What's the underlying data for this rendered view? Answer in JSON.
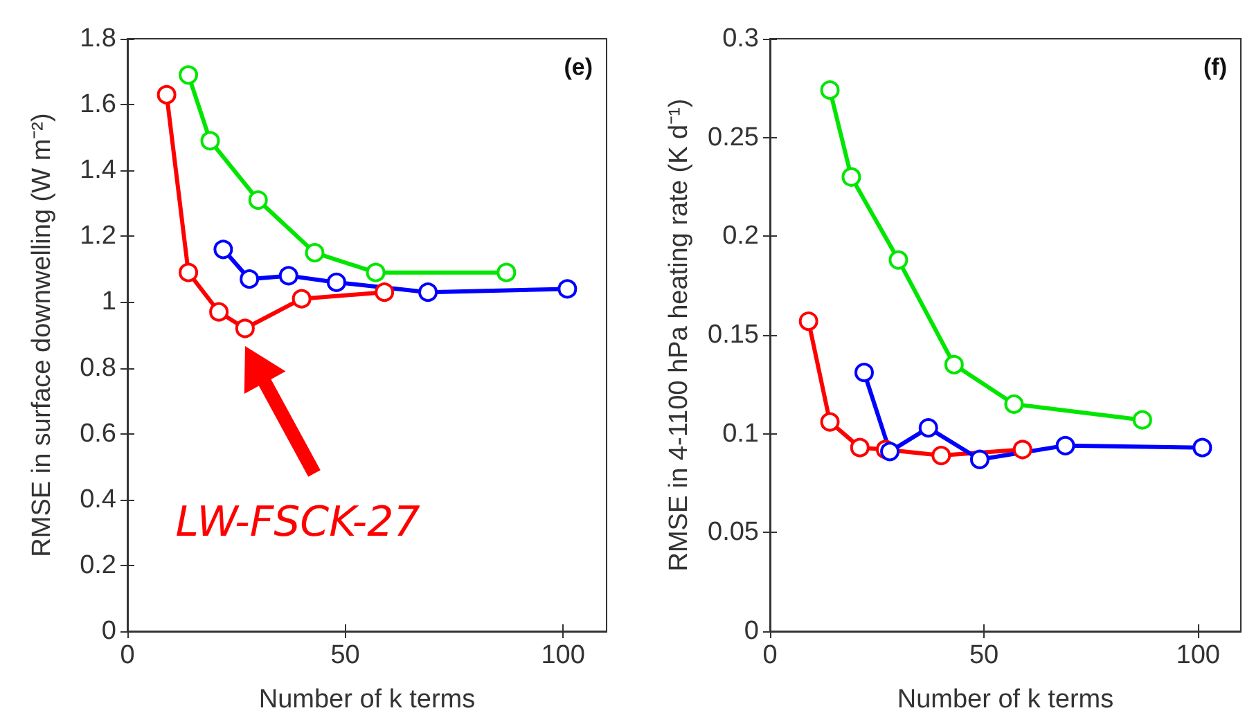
{
  "chart_data": [
    {
      "type": "line",
      "xlabel": "Number of k terms",
      "ylabel": "RMSE in surface downwelling (W m⁻²)",
      "annotations": [
        "(e)",
        "LW-FSCK-27"
      ],
      "xlim": [
        0,
        110
      ],
      "xticks": [
        0,
        50,
        100
      ],
      "ylim": [
        0,
        1.8
      ],
      "yticks": [
        0,
        0.2,
        0.4,
        0.6,
        0.8,
        1,
        1.2,
        1.4,
        1.6,
        1.8
      ],
      "grid": false,
      "marker": "circle",
      "line_style": "solid",
      "series": [
        {
          "color": "#ff0000",
          "x": [
            9,
            14,
            21,
            27,
            40,
            59
          ],
          "values": [
            1.63,
            1.09,
            0.97,
            0.92,
            1.01,
            1.03
          ]
        },
        {
          "color": "#00e600",
          "x": [
            14,
            19,
            30,
            43,
            57,
            87
          ],
          "values": [
            1.69,
            1.49,
            1.31,
            1.15,
            1.09,
            1.09
          ]
        },
        {
          "color": "#0000ff",
          "x": [
            22,
            28,
            37,
            48,
            69,
            101
          ],
          "values": [
            1.16,
            1.07,
            1.08,
            1.06,
            1.03,
            1.04
          ]
        }
      ]
    },
    {
      "type": "line",
      "xlabel": "Number of k terms",
      "ylabel": "RMSE in 4-1100 hPa heating rate (K d⁻¹)",
      "annotations": [
        "(f)"
      ],
      "xlim": [
        0,
        110
      ],
      "xticks": [
        0,
        50,
        100
      ],
      "ylim": [
        0,
        0.3
      ],
      "yticks": [
        0,
        0.05,
        0.1,
        0.15,
        0.2,
        0.25,
        0.3
      ],
      "grid": false,
      "marker": "circle",
      "line_style": "solid",
      "series": [
        {
          "color": "#ff0000",
          "x": [
            9,
            14,
            21,
            27,
            40,
            59
          ],
          "values": [
            0.157,
            0.106,
            0.093,
            0.092,
            0.089,
            0.092
          ]
        },
        {
          "color": "#00e600",
          "x": [
            14,
            19,
            30,
            43,
            57,
            87
          ],
          "values": [
            0.274,
            0.23,
            0.188,
            0.135,
            0.115,
            0.107
          ]
        },
        {
          "color": "#0000ff",
          "x": [
            22,
            28,
            37,
            49,
            69,
            101
          ],
          "values": [
            0.131,
            0.091,
            0.103,
            0.087,
            0.094,
            0.093
          ]
        }
      ]
    }
  ]
}
